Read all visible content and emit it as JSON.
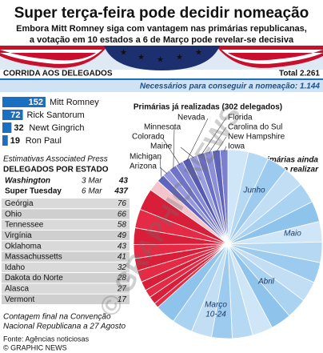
{
  "header": {
    "title": "Super terça-feira pode decidir nomeação",
    "subtitle_lines": [
      "Embora Mitt Romney siga com vantagem nas primárias republicanas,",
      "a votação em 10 estados a 6 de Março pode revelar-se decisiva"
    ]
  },
  "race": {
    "heading": "CORRIDA AOS DELEGADOS",
    "total": "Total 2.261",
    "needed": "Necessários para conseguir a nomeação: 1.144",
    "candidates": [
      {
        "name": "Mitt Romney",
        "delegates": 152
      },
      {
        "name": "Rick Santorum",
        "delegates": 72
      },
      {
        "name": "Newt Gingrich",
        "delegates": 32
      },
      {
        "name": "Ron Paul",
        "delegates": 19
      }
    ],
    "source_note": "Estimativas Associated Press"
  },
  "states_table": {
    "heading": "DELEGADOS POR ESTADO",
    "key_rows": [
      {
        "name": "Washington",
        "date": "3 Mar",
        "delegates": 43
      },
      {
        "name": "Super Tuesday",
        "date": "6 Mar",
        "delegates": 437
      }
    ],
    "rows": [
      {
        "name": "Geórgia",
        "delegates": 76
      },
      {
        "name": "Ohio",
        "delegates": 66
      },
      {
        "name": "Tennessee",
        "delegates": 58
      },
      {
        "name": "Virgínia",
        "delegates": 49
      },
      {
        "name": "Oklahoma",
        "delegates": 43
      },
      {
        "name": "Massachussetts",
        "delegates": 41
      },
      {
        "name": "Idaho",
        "delegates": 32
      },
      {
        "name": "Dakota do Norte",
        "delegates": 28
      },
      {
        "name": "Alasca",
        "delegates": 27
      },
      {
        "name": "Vermont",
        "delegates": 17
      }
    ],
    "footnote_lines": [
      "Contagem final na Convenção",
      "Nacional Republicana a 27 Agosto"
    ]
  },
  "pie": {
    "done_heading": "Primárias já realizadas (302 delegados)",
    "done_states_left": [
      "Nevada",
      "Minnesota",
      "Colorado",
      "Maine",
      "Michigan",
      "Arizona"
    ],
    "done_states_right": [
      "Florida",
      "Carolina do Sul",
      "New Hampshire",
      "Iowa"
    ],
    "remaining_heading_lines": [
      "Primárias ainda",
      "a realizar"
    ],
    "remaining_labels": [
      [
        "Junho"
      ],
      [
        "Maio"
      ],
      [
        "Abril"
      ],
      [
        "Março",
        "10-24"
      ]
    ]
  },
  "footer": {
    "source": "Fonte: Agências noticiosas",
    "credit": "© GRAPHIC NEWS"
  },
  "watermark": "© GRAPHIC NEWS"
}
